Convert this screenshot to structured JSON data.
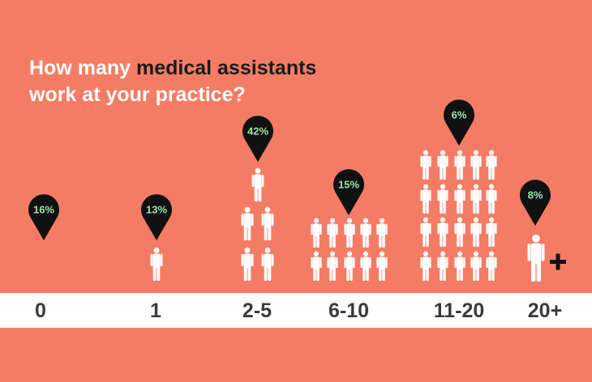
{
  "title": {
    "part1": "How many ",
    "highlight": "medical assistants",
    "line2": "work at your practice?"
  },
  "chart_data": {
    "type": "pictogram",
    "title": "How many medical assistants work at your practice?",
    "categories": [
      "0",
      "1",
      "2-5",
      "6-10",
      "11-20",
      "20+"
    ],
    "values": [
      16,
      13,
      42,
      15,
      6,
      8
    ],
    "value_labels": [
      "16%",
      "13%",
      "42%",
      "15%",
      "6%",
      "8%"
    ],
    "people_shown": [
      0,
      1,
      5,
      10,
      20,
      1
    ],
    "last_category_plus_marker": true,
    "unit": "%"
  },
  "colors": {
    "background": "#f47c65",
    "pin": "#111111",
    "pin_text": "#9ee3a8",
    "person": "#ffffff",
    "band": "#ffffff",
    "category_text": "#3a3a3a",
    "title_text": "#ffffff",
    "title_highlight": "#1a1a1a",
    "plus": "#111111"
  }
}
